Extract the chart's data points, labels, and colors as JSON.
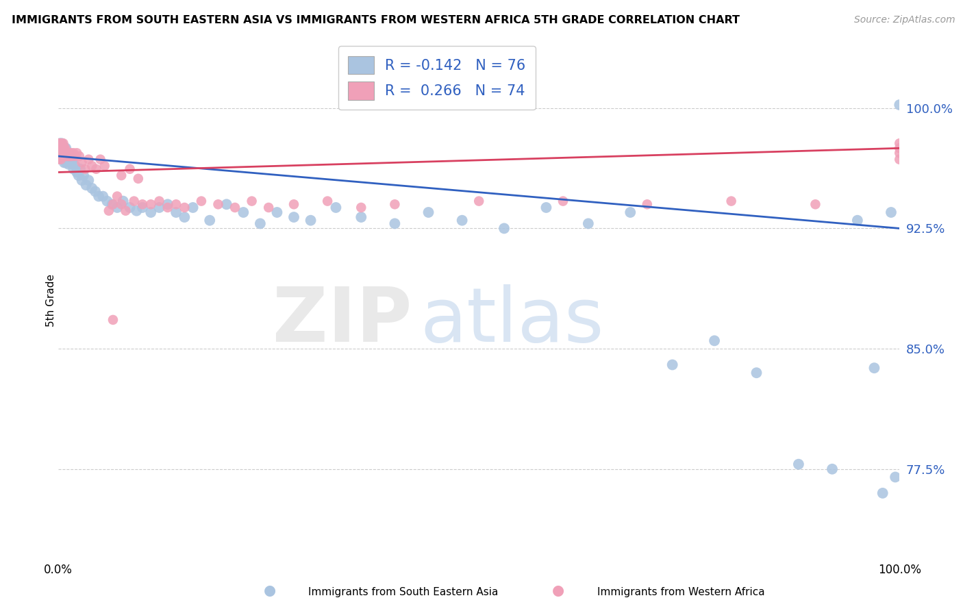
{
  "title": "IMMIGRANTS FROM SOUTH EASTERN ASIA VS IMMIGRANTS FROM WESTERN AFRICA 5TH GRADE CORRELATION CHART",
  "source": "Source: ZipAtlas.com",
  "ylabel": "5th Grade",
  "blue_color": "#aac4e0",
  "pink_color": "#f0a0b8",
  "blue_line_color": "#3060c0",
  "pink_line_color": "#d84060",
  "legend_label_blue": "Immigrants from South Eastern Asia",
  "legend_label_pink": "Immigrants from Western Africa",
  "legend_blue_r": "-0.142",
  "legend_blue_n": "76",
  "legend_pink_r": "0.266",
  "legend_pink_n": "74",
  "xmin": 0.0,
  "xmax": 1.0,
  "ymin": 0.72,
  "ymax": 1.04,
  "ytick_positions": [
    0.775,
    0.85,
    0.925,
    1.0
  ],
  "ytick_labels": [
    "77.5%",
    "85.0%",
    "92.5%",
    "100.0%"
  ],
  "blue_trend_start": 0.97,
  "blue_trend_end": 0.925,
  "pink_trend_start": 0.96,
  "pink_trend_end": 0.975,
  "blue_x": [
    0.002,
    0.003,
    0.003,
    0.004,
    0.004,
    0.005,
    0.005,
    0.005,
    0.006,
    0.006,
    0.007,
    0.007,
    0.008,
    0.009,
    0.009,
    0.01,
    0.011,
    0.012,
    0.013,
    0.014,
    0.015,
    0.016,
    0.017,
    0.018,
    0.02,
    0.022,
    0.024,
    0.026,
    0.028,
    0.03,
    0.033,
    0.036,
    0.04,
    0.044,
    0.048,
    0.053,
    0.058,
    0.064,
    0.07,
    0.077,
    0.085,
    0.093,
    0.1,
    0.11,
    0.12,
    0.13,
    0.14,
    0.15,
    0.16,
    0.18,
    0.2,
    0.22,
    0.24,
    0.26,
    0.28,
    0.3,
    0.33,
    0.36,
    0.4,
    0.44,
    0.48,
    0.53,
    0.58,
    0.63,
    0.68,
    0.73,
    0.78,
    0.83,
    0.88,
    0.92,
    0.95,
    0.97,
    0.98,
    0.99,
    0.995,
    1.0
  ],
  "blue_y": [
    0.978,
    0.975,
    0.972,
    0.978,
    0.97,
    0.975,
    0.972,
    0.968,
    0.976,
    0.97,
    0.972,
    0.966,
    0.97,
    0.975,
    0.966,
    0.968,
    0.97,
    0.965,
    0.968,
    0.966,
    0.97,
    0.966,
    0.968,
    0.962,
    0.964,
    0.96,
    0.958,
    0.962,
    0.955,
    0.958,
    0.952,
    0.955,
    0.95,
    0.948,
    0.945,
    0.945,
    0.942,
    0.94,
    0.938,
    0.942,
    0.938,
    0.936,
    0.938,
    0.935,
    0.938,
    0.94,
    0.935,
    0.932,
    0.938,
    0.93,
    0.94,
    0.935,
    0.928,
    0.935,
    0.932,
    0.93,
    0.938,
    0.932,
    0.928,
    0.935,
    0.93,
    0.925,
    0.938,
    0.928,
    0.935,
    0.84,
    0.855,
    0.835,
    0.778,
    0.775,
    0.93,
    0.838,
    0.76,
    0.935,
    0.77,
    1.002
  ],
  "pink_x": [
    0.0,
    0.0,
    0.0,
    0.001,
    0.001,
    0.002,
    0.002,
    0.002,
    0.003,
    0.003,
    0.003,
    0.004,
    0.004,
    0.005,
    0.005,
    0.006,
    0.006,
    0.007,
    0.007,
    0.008,
    0.008,
    0.009,
    0.01,
    0.011,
    0.012,
    0.013,
    0.014,
    0.015,
    0.016,
    0.018,
    0.02,
    0.022,
    0.025,
    0.028,
    0.032,
    0.036,
    0.04,
    0.045,
    0.05,
    0.055,
    0.06,
    0.065,
    0.07,
    0.075,
    0.08,
    0.09,
    0.1,
    0.11,
    0.12,
    0.13,
    0.14,
    0.15,
    0.17,
    0.19,
    0.21,
    0.23,
    0.25,
    0.28,
    0.32,
    0.36,
    0.4,
    0.5,
    0.6,
    0.7,
    0.8,
    0.9,
    1.0,
    1.0,
    1.0,
    1.0,
    0.065,
    0.075,
    0.085,
    0.095
  ],
  "pink_y": [
    0.975,
    0.972,
    0.968,
    0.978,
    0.974,
    0.978,
    0.974,
    0.97,
    0.978,
    0.974,
    0.968,
    0.978,
    0.972,
    0.976,
    0.97,
    0.978,
    0.972,
    0.975,
    0.97,
    0.975,
    0.97,
    0.972,
    0.97,
    0.972,
    0.97,
    0.972,
    0.97,
    0.972,
    0.97,
    0.972,
    0.97,
    0.972,
    0.97,
    0.966,
    0.962,
    0.968,
    0.964,
    0.962,
    0.968,
    0.964,
    0.936,
    0.94,
    0.945,
    0.94,
    0.936,
    0.942,
    0.94,
    0.94,
    0.942,
    0.938,
    0.94,
    0.938,
    0.942,
    0.94,
    0.938,
    0.942,
    0.938,
    0.94,
    0.942,
    0.938,
    0.94,
    0.942,
    0.942,
    0.94,
    0.942,
    0.94,
    0.978,
    0.975,
    0.972,
    0.968,
    0.868,
    0.958,
    0.962,
    0.956
  ]
}
